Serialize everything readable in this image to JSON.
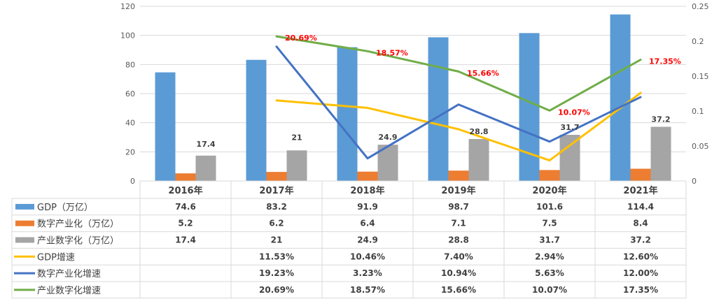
{
  "chart_data": {
    "type": "bar",
    "title": "",
    "xlabel": "",
    "ylabel": "",
    "categories": [
      "2016年",
      "2017年",
      "2018年",
      "2019年",
      "2020年",
      "2021年"
    ],
    "ylim": [
      0,
      120
    ],
    "yticks": [
      "0",
      "20",
      "40",
      "60",
      "80",
      "100",
      "120"
    ],
    "y2lim": [
      0,
      0.25
    ],
    "y2ticks": [
      "0",
      "0.05",
      "0.1",
      "0.15",
      "0.2",
      "0.25"
    ],
    "grid": true,
    "legend_placement": "data-table-left",
    "series": [
      {
        "name": "GDP（万亿）",
        "type": "bar",
        "axis": "left",
        "color": "#5b9bd5",
        "values": [
          74.6,
          83.2,
          91.9,
          98.7,
          101.6,
          114.4
        ],
        "table": [
          "74.6",
          "83.2",
          "91.9",
          "98.7",
          "101.6",
          "114.4"
        ],
        "labels": null
      },
      {
        "name": "数字产业化（万亿）",
        "type": "bar",
        "axis": "left",
        "color": "#ed7d31",
        "values": [
          5.2,
          6.2,
          6.4,
          7.1,
          7.5,
          8.4
        ],
        "table": [
          "5.2",
          "6.2",
          "6.4",
          "7.1",
          "7.5",
          "8.4"
        ],
        "labels": null
      },
      {
        "name": "产业数字化（万亿）",
        "type": "bar",
        "axis": "left",
        "color": "#a5a5a5",
        "values": [
          17.4,
          21,
          24.9,
          28.8,
          31.7,
          37.2
        ],
        "table": [
          "17.4",
          "21",
          "24.9",
          "28.8",
          "31.7",
          "37.2"
        ],
        "labels": [
          "17.4",
          "21",
          "24.9",
          "28.8",
          "31.7",
          "37.2"
        ]
      },
      {
        "name": "GDP增速",
        "type": "line",
        "axis": "right",
        "color": "#ffc000",
        "values": [
          null,
          0.1153,
          0.1046,
          0.074,
          0.0294,
          0.126
        ],
        "table": [
          "",
          "11.53%",
          "10.46%",
          "7.40%",
          "2.94%",
          "12.60%"
        ],
        "labels": null
      },
      {
        "name": "数字产业化增速",
        "type": "line",
        "axis": "right",
        "color": "#4472c4",
        "values": [
          null,
          0.1923,
          0.0323,
          0.1094,
          0.0563,
          0.12
        ],
        "table": [
          "",
          "19.23%",
          "3.23%",
          "10.94%",
          "5.63%",
          "12.00%"
        ],
        "labels": null
      },
      {
        "name": "产业数字化增速",
        "type": "line",
        "axis": "right",
        "color": "#70ad47",
        "values": [
          null,
          0.2069,
          0.1857,
          0.1566,
          0.1007,
          0.1735
        ],
        "table": [
          "",
          "20.69%",
          "18.57%",
          "15.66%",
          "10.07%",
          "17.35%"
        ],
        "labels": [
          "",
          "20.69%",
          "18.57%",
          "15.66%",
          "10.07%",
          "17.35%"
        ],
        "label_color": "#ff0000"
      }
    ]
  }
}
